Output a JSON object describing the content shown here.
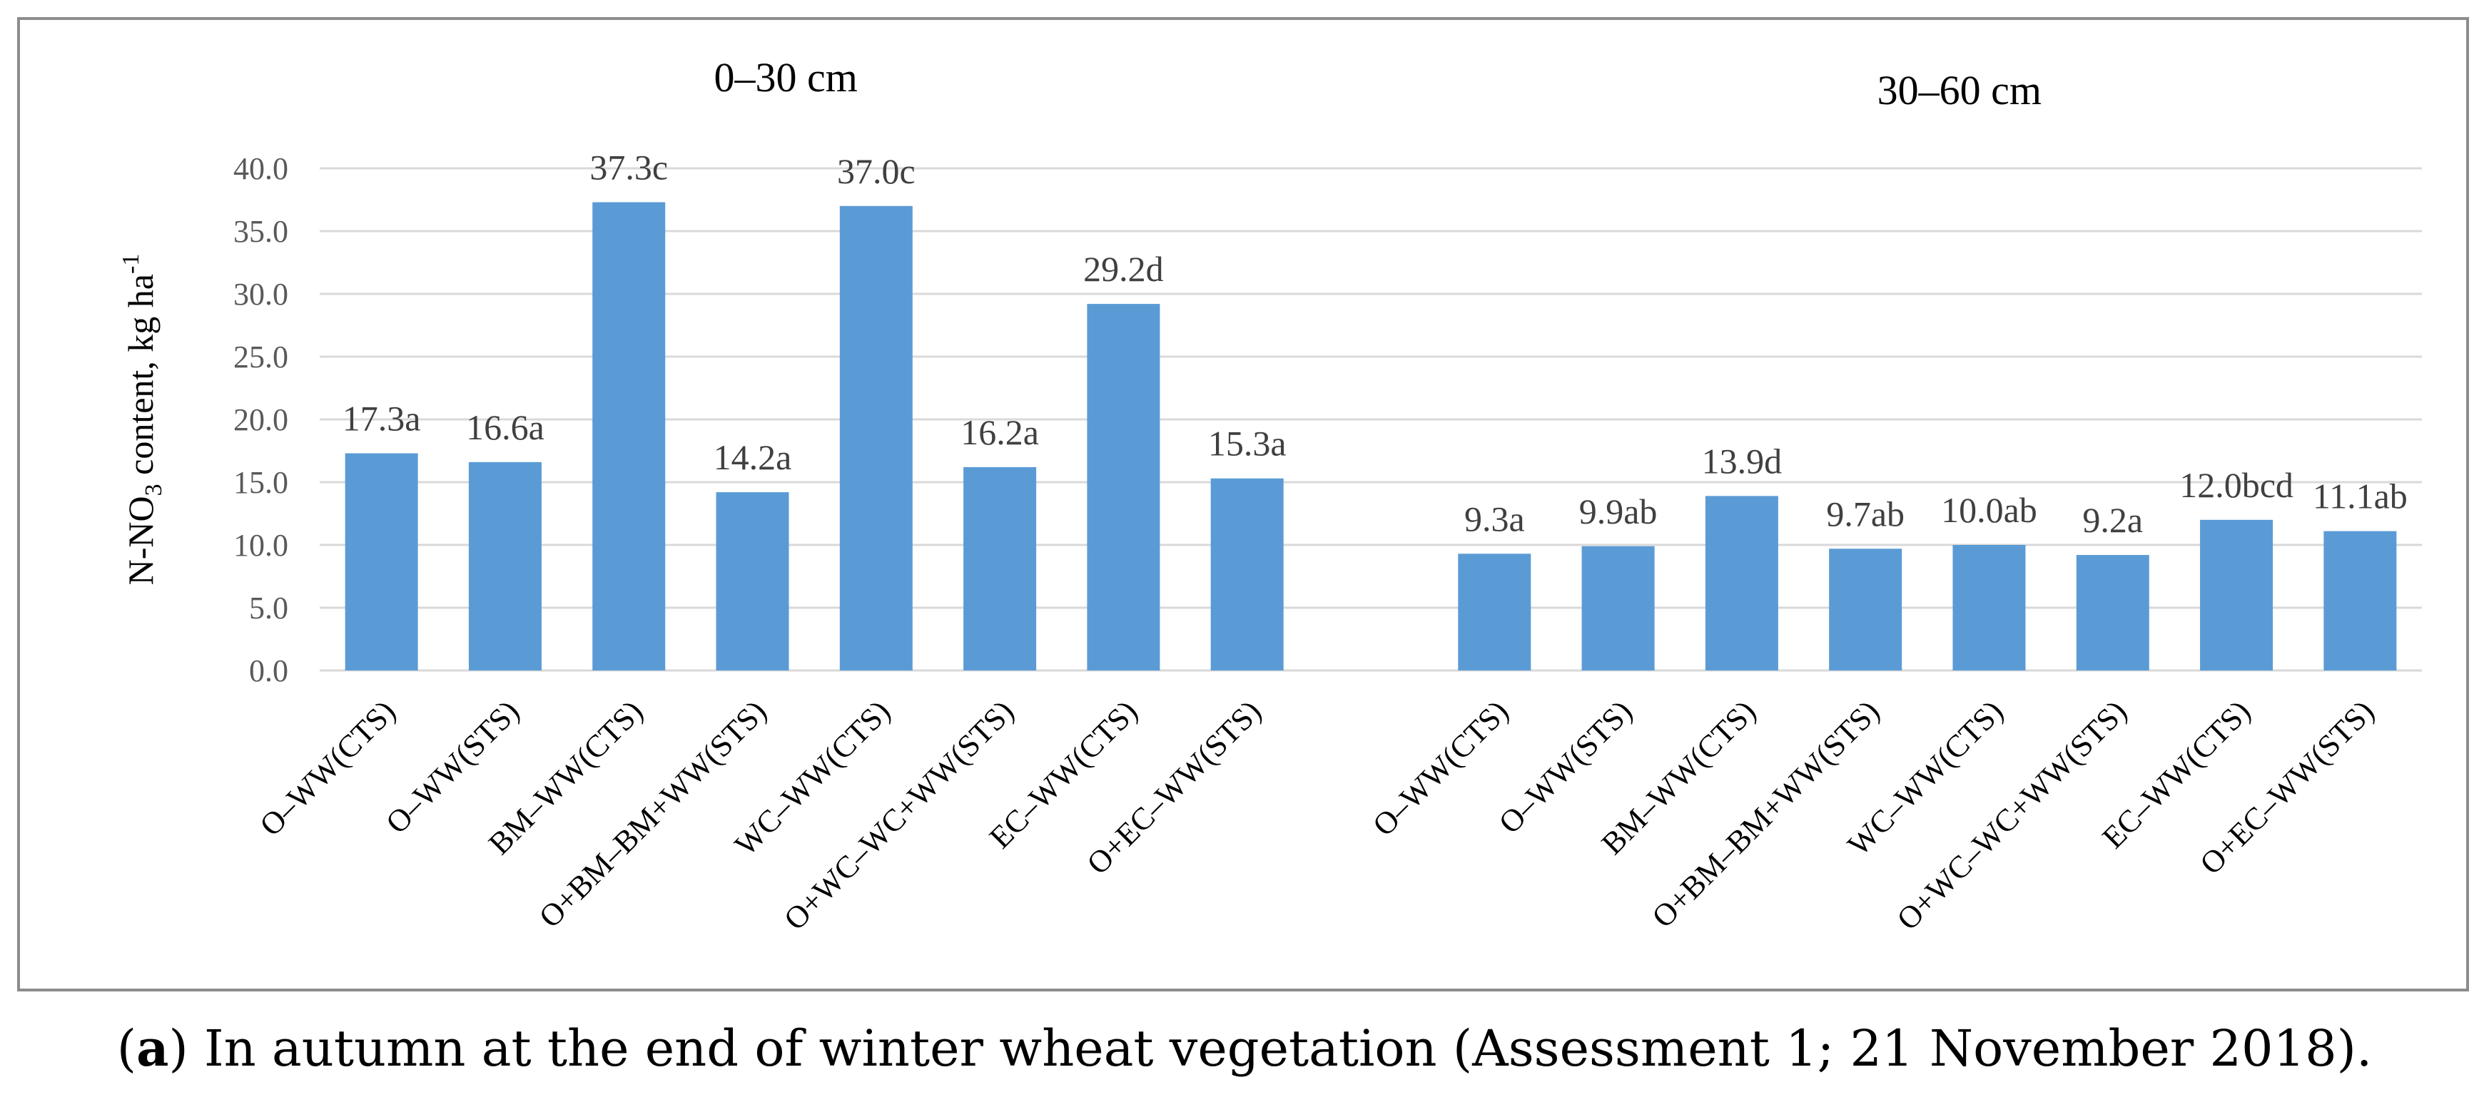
{
  "chart_data": {
    "type": "bar",
    "ylabel": "N-NO3 content, kg ha-1",
    "ylabel_parts": {
      "base": "N-NO",
      "sub": "3",
      "mid": " content, kg ha",
      "sup": "-1"
    },
    "ylim": [
      0,
      40
    ],
    "yticks": [
      "0.0",
      "5.0",
      "10.0",
      "15.0",
      "20.0",
      "25.0",
      "30.0",
      "35.0",
      "40.0"
    ],
    "grid": true,
    "color": "#5b9bd5",
    "groups": [
      {
        "title": "0–30  cm",
        "categories": [
          "O–WW(CTS)",
          "O–WW(STS)",
          "BM–WW(CTS)",
          "O+BM–BM+WW(STS)",
          "WC–WW(CTS)",
          "O+WC–WC+WW(STS)",
          "EC–WW(CTS)",
          "O+EC–WW(STS)"
        ],
        "values": [
          17.3,
          16.6,
          37.3,
          14.2,
          37.0,
          16.2,
          29.2,
          15.3
        ],
        "labels": [
          "17.3a",
          "16.6a",
          "37.3c",
          "14.2a",
          "37.0c",
          "16.2a",
          "29.2d",
          "15.3a"
        ]
      },
      {
        "title": "30–60  cm",
        "categories": [
          "O–WW(CTS)",
          "O–WW(STS)",
          "BM–WW(CTS)",
          "O+BM–BM+WW(STS)",
          "WC–WW(CTS)",
          "O+WC–WC+WW(STS)",
          "EC–WW(CTS)",
          "O+EC–WW(STS)"
        ],
        "values": [
          9.3,
          9.9,
          13.9,
          9.7,
          10.0,
          9.2,
          12.0,
          11.1
        ],
        "labels": [
          "9.3a",
          "9.9ab",
          "13.9d",
          "9.7ab",
          "10.0ab",
          "9.2a",
          "12.0bcd",
          "11.1ab"
        ]
      }
    ]
  },
  "caption": {
    "open": "(",
    "letter": "a",
    "text": ") In autumn at the end of winter wheat vegetation (Assessment 1; 21 November 2018)."
  }
}
